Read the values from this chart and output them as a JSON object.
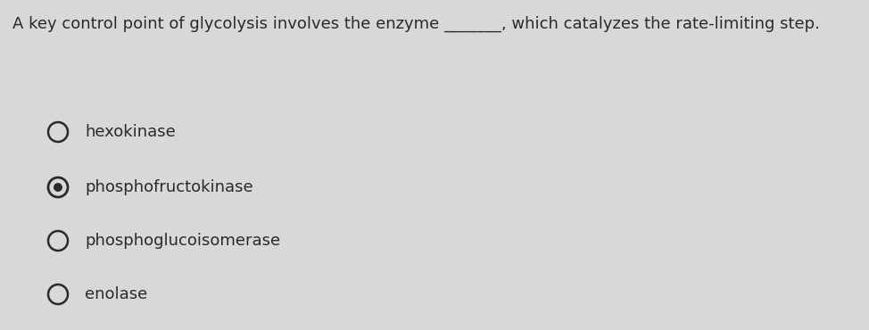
{
  "background_color": "#d8d8d8",
  "question_text": "A key control point of glycolysis involves the enzyme _______, which catalyzes the rate-limiting step.",
  "question_fontsize": 13.0,
  "options": [
    {
      "label": "hexokinase",
      "selected": false
    },
    {
      "label": "phosphofructokinase",
      "selected": true
    },
    {
      "label": "phosphoglucoisomerase",
      "selected": false
    },
    {
      "label": "enolase",
      "selected": false
    }
  ],
  "option_fontsize": 13.0,
  "text_color": "#2a2a2a",
  "radio_edge_color": "#2a2a2a",
  "radio_fill_color": "#2a2a2a"
}
